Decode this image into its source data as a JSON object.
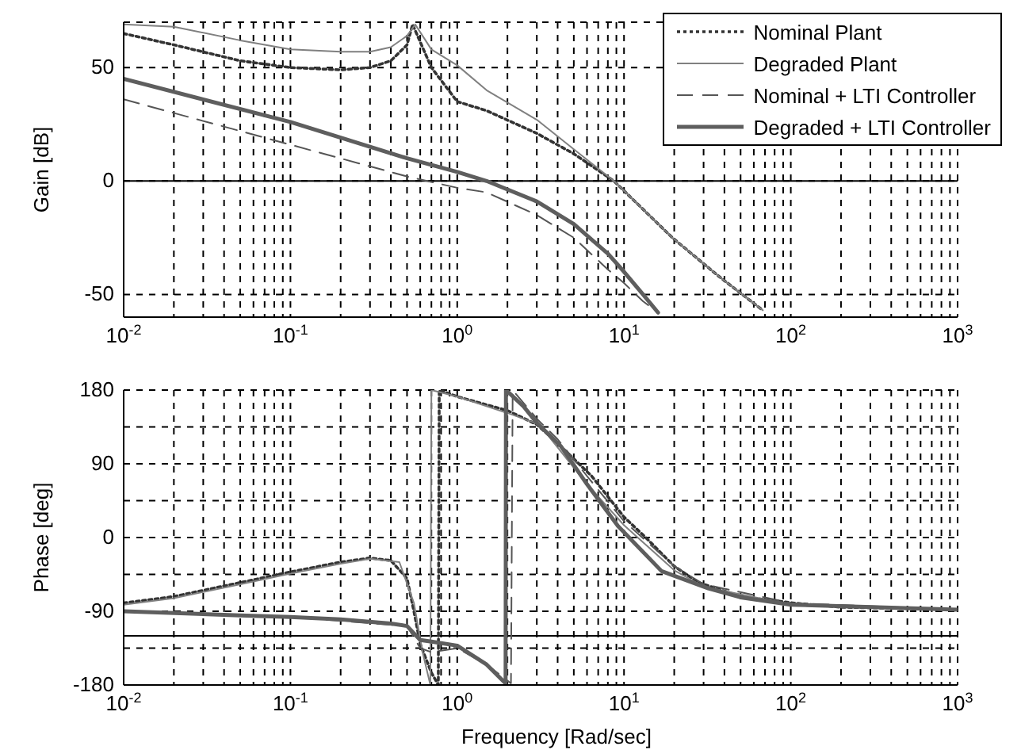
{
  "chart_data": [
    {
      "type": "line",
      "ylabel": "Gain [dB]",
      "log": "x",
      "xlim": [
        0.01,
        1000
      ],
      "ylim": [
        -60,
        70
      ],
      "grid": true,
      "legend": "top right",
      "xticks": [
        {
          "value": 0.01,
          "label": "10$^{-2}$"
        },
        {
          "value": 0.02,
          "label": null
        },
        {
          "value": 0.03,
          "label": null
        },
        {
          "value": 0.04,
          "label": null
        },
        {
          "value": 0.05,
          "label": null
        },
        {
          "value": 0.06,
          "label": null
        },
        {
          "value": 0.07,
          "label": null
        },
        {
          "value": 0.08,
          "label": null
        },
        {
          "value": 0.09,
          "label": null
        },
        {
          "value": 0.1,
          "label": "10$^{-1}$"
        },
        {
          "value": 0.2,
          "label": null
        },
        {
          "value": 0.3,
          "label": null
        },
        {
          "value": 0.4,
          "label": null
        },
        {
          "value": 0.5,
          "label": null
        },
        {
          "value": 0.6,
          "label": null
        },
        {
          "value": 0.7,
          "label": null
        },
        {
          "value": 0.8,
          "label": null
        },
        {
          "value": 0.9,
          "label": null
        },
        {
          "value": 1,
          "label": "10$^{0}$"
        },
        {
          "value": 2,
          "label": null
        },
        {
          "value": 3,
          "label": null
        },
        {
          "value": 4,
          "label": null
        },
        {
          "value": 5,
          "label": null
        },
        {
          "value": 6,
          "label": null
        },
        {
          "value": 7,
          "label": null
        },
        {
          "value": 8,
          "label": null
        },
        {
          "value": 9,
          "label": null
        },
        {
          "value": 10,
          "label": "10$^{1}$"
        },
        {
          "value": 20,
          "label": null
        },
        {
          "value": 30,
          "label": null
        },
        {
          "value": 40,
          "label": null
        },
        {
          "value": 50,
          "label": null
        },
        {
          "value": 60,
          "label": null
        },
        {
          "value": 70,
          "label": null
        },
        {
          "value": 80,
          "label": null
        },
        {
          "value": 90,
          "label": null
        },
        {
          "value": 100,
          "label": "10$^{2}$"
        },
        {
          "value": 200,
          "label": null
        },
        {
          "value": 300,
          "label": null
        },
        {
          "value": 400,
          "label": null
        },
        {
          "value": 500,
          "label": null
        },
        {
          "value": 600,
          "label": null
        },
        {
          "value": 700,
          "label": null
        },
        {
          "value": 800,
          "label": null
        },
        {
          "value": 900,
          "label": null
        },
        {
          "value": 1000,
          "label": "10$^{3}$"
        }
      ],
      "yticks": [
        -50,
        0,
        50
      ],
      "ref_lines": [
        {
          "axis": "y",
          "value": 0,
          "color": "#000000"
        }
      ],
      "series": [
        {
          "name": "Nominal Plant",
          "color": "#333333",
          "line_style": "dotted",
          "x": [
            0.01,
            0.02,
            0.05,
            0.1,
            0.2,
            0.3,
            0.4,
            0.5,
            0.54,
            0.7,
            1,
            1.5,
            3,
            5,
            8.7,
            19.5,
            37,
            68
          ],
          "values": [
            65,
            60,
            53,
            50,
            49,
            50,
            53,
            60,
            69,
            50,
            35,
            31,
            21,
            12,
            0,
            -25,
            -42,
            -57
          ]
        },
        {
          "name": "Degraded Plant",
          "color": "#808080",
          "line_style": "solid",
          "x": [
            0.01,
            0.02,
            0.05,
            0.1,
            0.2,
            0.3,
            0.4,
            0.5,
            0.56,
            0.7,
            1,
            1.5,
            3,
            5,
            8.7,
            19.5,
            37,
            68
          ],
          "values": [
            69,
            68,
            62,
            58,
            57,
            57,
            59,
            64,
            69,
            58,
            51,
            40,
            27,
            14,
            0,
            -25,
            -42,
            -57
          ]
        },
        {
          "name": "Nominal + LTI Controller",
          "color": "#555555",
          "line_style": "dashed",
          "x": [
            0.01,
            0.1,
            0.5,
            1,
            1.5,
            3,
            5,
            8,
            10,
            13,
            16
          ],
          "values": [
            36,
            16,
            2,
            -3,
            -5,
            -15,
            -25,
            -39,
            -45,
            -53,
            -58
          ]
        },
        {
          "name": "Degraded + LTI Controller",
          "color": "#5e5e5e",
          "line_style": "solid",
          "x": [
            0.01,
            0.1,
            0.5,
            1,
            1.5,
            3,
            5,
            8,
            10,
            13,
            16
          ],
          "values": [
            45,
            26,
            10,
            4,
            0,
            -9,
            -19,
            -32,
            -40,
            -50,
            -58
          ]
        }
      ]
    },
    {
      "type": "line",
      "ylabel": "Phase [deg]",
      "xlabel": "Frequency [Rad/sec]",
      "log": "x",
      "xlim": [
        0.01,
        1000
      ],
      "ylim": [
        -180,
        180
      ],
      "grid": true,
      "xticks": [
        {
          "value": 0.01,
          "label": "10$^{-2}$"
        },
        {
          "value": 0.02,
          "label": null
        },
        {
          "value": 0.03,
          "label": null
        },
        {
          "value": 0.04,
          "label": null
        },
        {
          "value": 0.05,
          "label": null
        },
        {
          "value": 0.06,
          "label": null
        },
        {
          "value": 0.07,
          "label": null
        },
        {
          "value": 0.08,
          "label": null
        },
        {
          "value": 0.09,
          "label": null
        },
        {
          "value": 0.1,
          "label": "10$^{-1}$"
        },
        {
          "value": 0.2,
          "label": null
        },
        {
          "value": 0.3,
          "label": null
        },
        {
          "value": 0.4,
          "label": null
        },
        {
          "value": 0.5,
          "label": null
        },
        {
          "value": 0.6,
          "label": null
        },
        {
          "value": 0.7,
          "label": null
        },
        {
          "value": 0.8,
          "label": null
        },
        {
          "value": 0.9,
          "label": null
        },
        {
          "value": 1,
          "label": "10$^{0}$"
        },
        {
          "value": 2,
          "label": null
        },
        {
          "value": 3,
          "label": null
        },
        {
          "value": 4,
          "label": null
        },
        {
          "value": 5,
          "label": null
        },
        {
          "value": 6,
          "label": null
        },
        {
          "value": 7,
          "label": null
        },
        {
          "value": 8,
          "label": null
        },
        {
          "value": 9,
          "label": null
        },
        {
          "value": 10,
          "label": "10$^{1}$"
        },
        {
          "value": 20,
          "label": null
        },
        {
          "value": 30,
          "label": null
        },
        {
          "value": 40,
          "label": null
        },
        {
          "value": 50,
          "label": null
        },
        {
          "value": 60,
          "label": null
        },
        {
          "value": 70,
          "label": null
        },
        {
          "value": 80,
          "label": null
        },
        {
          "value": 90,
          "label": null
        },
        {
          "value": 100,
          "label": "10$^{2}$"
        },
        {
          "value": 200,
          "label": null
        },
        {
          "value": 300,
          "label": null
        },
        {
          "value": 400,
          "label": null
        },
        {
          "value": 500,
          "label": null
        },
        {
          "value": 600,
          "label": null
        },
        {
          "value": 700,
          "label": null
        },
        {
          "value": 800,
          "label": null
        },
        {
          "value": 900,
          "label": null
        },
        {
          "value": 1000,
          "label": "10$^{3}$"
        }
      ],
      "yticks": [
        -180,
        {
          "value": -135,
          "label": null
        },
        -90,
        {
          "value": -45,
          "label": null
        },
        0,
        {
          "value": 45,
          "label": null
        },
        90,
        {
          "value": 135,
          "label": null
        },
        180
      ],
      "ref_lines": [
        {
          "axis": "y",
          "value": -120,
          "color": "#000000"
        }
      ],
      "series": [
        {
          "color": "#333333",
          "line_style": "dotted",
          "x": [
            0.01,
            0.02,
            0.05,
            0.1,
            0.2,
            0.3,
            0.4,
            0.5,
            0.55,
            0.6,
            0.7,
            0.77,
            0.78,
            1,
            2,
            3,
            4,
            6.4,
            10,
            13.5,
            20,
            28,
            50,
            104,
            200,
            1000
          ],
          "values": [
            -80,
            -72,
            -55,
            -42,
            -30,
            -25,
            -28,
            -50,
            -90,
            -130,
            -165,
            -180,
            180,
            172,
            155,
            138,
            115,
            75,
            25,
            0,
            -35,
            -55,
            -72,
            -80,
            -85,
            -88
          ]
        },
        {
          "color": "#808080",
          "line_style": "solid",
          "x": [
            0.01,
            0.02,
            0.05,
            0.1,
            0.2,
            0.3,
            0.45,
            0.55,
            0.62,
            0.69,
            0.7,
            1,
            2,
            3.1,
            4,
            6,
            10,
            20,
            30,
            100,
            1000
          ],
          "values": [
            -82,
            -74,
            -57,
            -44,
            -32,
            -26,
            -30,
            -80,
            -140,
            -180,
            180,
            172,
            152,
            138,
            110,
            65,
            15,
            -40,
            -60,
            -82,
            -88
          ]
        },
        {
          "color": "#555555",
          "line_style": "dashed",
          "x": [
            0.01,
            0.1,
            0.5,
            0.6,
            0.7,
            1,
            1.5,
            2.1,
            2.15,
            3,
            4,
            6,
            10,
            20,
            30,
            100,
            1000
          ],
          "values": [
            -90,
            -97,
            -108,
            -135,
            -140,
            -135,
            -155,
            -178,
            180,
            145,
            120,
            75,
            20,
            -35,
            -57,
            -80,
            -88
          ]
        },
        {
          "color": "#5e5e5e",
          "line_style": "solid",
          "x": [
            0.01,
            0.05,
            0.1,
            0.2,
            0.4,
            0.5,
            0.6,
            0.7,
            1,
            1.5,
            1.95,
            1.96,
            2.5,
            3,
            4.2,
            6,
            9.2,
            16.8,
            32,
            50,
            100,
            1000
          ],
          "values": [
            -90,
            -95,
            -97,
            -100,
            -105,
            -108,
            -125,
            -127,
            -132,
            -155,
            -178,
            180,
            160,
            140,
            111,
            65,
            14,
            -41,
            -62,
            -73,
            -82,
            -88
          ]
        }
      ]
    }
  ]
}
